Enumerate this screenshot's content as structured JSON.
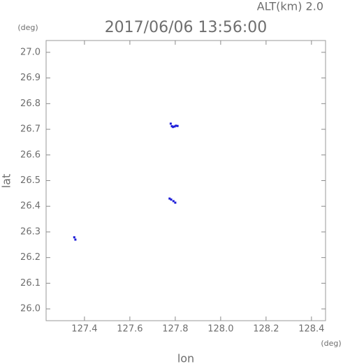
{
  "chart_data": {
    "type": "scatter",
    "title": "2017/06/06 13:56:00",
    "annotation": "ALT(km) 2.0",
    "x_label": "lon",
    "y_label": "lat",
    "x_unit": "(deg)",
    "y_unit": "(deg)",
    "x": [
      127.78,
      127.785,
      127.79,
      127.797,
      127.803,
      127.81,
      127.775,
      127.782,
      127.792,
      127.8,
      127.355,
      127.36
    ],
    "values": [
      26.722,
      26.712,
      26.709,
      26.711,
      26.714,
      26.713,
      26.43,
      26.426,
      26.42,
      26.414,
      26.279,
      26.27
    ],
    "color": "#1c1cd8",
    "xlim": [
      127.231,
      128.462
    ],
    "ylim": [
      25.954,
      27.046
    ],
    "xticks": [
      127.4,
      127.6,
      127.8,
      {
        "value": 128.0,
        "label": "128.0"
      },
      128.2,
      128.4
    ],
    "yticks": [
      {
        "value": 26.0,
        "label": "26.0"
      },
      26.1,
      26.2,
      26.3,
      26.4,
      26.5,
      26.6,
      26.7,
      26.8,
      26.9,
      {
        "value": 27.0,
        "label": "27.0"
      }
    ]
  }
}
